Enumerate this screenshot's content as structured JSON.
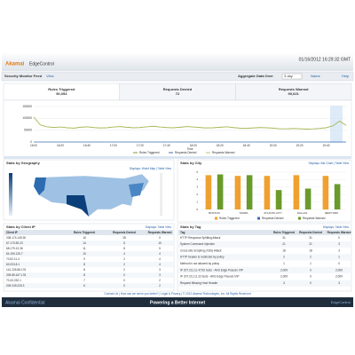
{
  "header": {
    "brand": "Akamai",
    "product": "EdgeControl",
    "datetime": "01/16/2012 16:29:32 GMT"
  },
  "toolbar": {
    "title": "Security Monitor Feed",
    "view": "View",
    "aggregate_label": "Aggregate Data Over",
    "aggregate_value": "3 day",
    "name": "Name",
    "help": "Help"
  },
  "tabs": [
    {
      "label": "Rules Triggered",
      "value": "90,053"
    },
    {
      "label": "Requests Denied",
      "value": "72"
    },
    {
      "label": "Requests Warned",
      "value": "90,621"
    }
  ],
  "trend_chart": {
    "type": "line",
    "x_label": "Time",
    "categories": [
      "16:00",
      null,
      null,
      null,
      "16:20",
      null,
      null,
      null,
      "16:40",
      null,
      null,
      null,
      "17:00",
      null,
      null,
      null,
      "17:20",
      null,
      null,
      null,
      "17:40",
      null,
      null,
      null,
      "18:00",
      null,
      null,
      null,
      "18:20",
      null,
      null,
      null,
      "18:40",
      null,
      null,
      null,
      "19:00",
      null,
      null,
      null,
      "19:20",
      null,
      null,
      null,
      "19:40",
      null,
      null,
      null
    ],
    "series": [
      {
        "name": "Rules Triggered",
        "color": "#8a9a2c",
        "values": [
          105000,
          72000,
          64000,
          61000,
          63000,
          60000,
          58000,
          62000,
          64000,
          61000,
          59000,
          60000,
          63000,
          65000,
          62000,
          60000,
          61000,
          64000,
          66000,
          63000,
          61000,
          60000,
          62000,
          65000,
          63000,
          61000,
          59000,
          60000,
          62000,
          64000,
          61000,
          58000,
          57000,
          59000,
          61000,
          60000,
          58000,
          56000,
          55000,
          57000,
          56000,
          54000,
          55000,
          57000,
          60000,
          68000,
          88000,
          70000
        ]
      },
      {
        "name": "Requests Denied",
        "color": "#3b6fb6",
        "values": [
          0,
          0,
          0,
          0,
          0,
          0,
          0,
          0,
          0,
          0,
          0,
          0,
          0,
          0,
          0,
          0,
          0,
          0,
          0,
          0,
          0,
          0,
          0,
          0,
          0,
          0,
          0,
          0,
          0,
          0,
          0,
          0,
          0,
          0,
          0,
          0,
          0,
          0,
          0,
          0,
          0,
          0,
          0,
          0,
          0,
          0,
          0,
          0
        ]
      },
      {
        "name": "Requests Warned",
        "color": "#b7c46a",
        "values": [
          106000,
          73000,
          65000,
          62000,
          64000,
          61000,
          59000,
          63000,
          65000,
          62000,
          60000,
          61000,
          64000,
          66000,
          63000,
          61000,
          62000,
          65000,
          67000,
          64000,
          62000,
          61000,
          63000,
          66000,
          64000,
          62000,
          60000,
          61000,
          63000,
          65000,
          62000,
          59000,
          58000,
          60000,
          62000,
          61000,
          59000,
          57000,
          56000,
          58000,
          57000,
          55000,
          56000,
          58000,
          61000,
          69000,
          89000,
          71000
        ]
      }
    ],
    "ylim": [
      0,
      150000
    ],
    "yticks": [
      0,
      50000,
      100000,
      150000
    ],
    "grid": true
  },
  "geo_panel": {
    "title": "Stats by Geography",
    "links": "Displays: World Map | Table View"
  },
  "city_panel": {
    "title": "Stats by City",
    "links": "Displays: Bar Chart | Table View",
    "chart": {
      "type": "bar",
      "categories": [
        "BOSTON",
        "TAMPA",
        "ATLANTA CITY",
        "DALLAS",
        "NEWYORK"
      ],
      "series": [
        {
          "name": "Rules Triggered",
          "color": "#f0a030",
          "values": [
            4.6,
            4.5,
            4.5,
            4.6,
            4.5
          ]
        },
        {
          "name": "Requests Denied",
          "color": "#3b6fb6",
          "values": [
            0,
            0,
            0,
            0,
            0
          ]
        },
        {
          "name": "Requests Warned",
          "color": "#6a9a2a",
          "values": [
            4.7,
            4.6,
            2.6,
            2.8,
            3.4
          ]
        }
      ],
      "ylim": [
        0,
        5
      ],
      "yticks": [
        0,
        1,
        2,
        3,
        4,
        5
      ]
    }
  },
  "ip_table": {
    "title": "Stats by Client IP",
    "links": "Displays: Table View",
    "columns": [
      "Client IP",
      "Rules Triggered",
      "Requests Denied",
      "Requests Warned"
    ],
    "rows": [
      [
        "208.174.145.30",
        "16",
        "28",
        "0"
      ],
      [
        "67.170.59.23",
        "14",
        "5",
        "10"
      ],
      [
        "68.179.13.36",
        "11",
        "8",
        "5"
      ],
      [
        "64.190.125.7",
        "10",
        "4",
        "4"
      ],
      [
        "70.52.11.4",
        "9",
        "2",
        "4"
      ],
      [
        "63.203.8.1",
        "8",
        "2",
        "4"
      ],
      [
        "141.226.58.176",
        "8",
        "2",
        "3"
      ],
      [
        "209.85.167.178",
        "8",
        "0",
        "3"
      ],
      [
        "70.43.232.1",
        "7",
        "0",
        "2"
      ],
      [
        "209.249.225.3",
        "6",
        "0",
        "2"
      ]
    ]
  },
  "tag_table": {
    "title": "Stats by Tag",
    "links": "Displays: Table View",
    "columns": [
      "Tag",
      "Rules Triggered",
      "Requests Denied",
      "Requests Warned"
    ],
    "rows": [
      [
        "HTTP Response Splitting Attack",
        "31",
        "31",
        "0"
      ],
      [
        "System Command Injection",
        "21",
        "21",
        "3"
      ],
      [
        "Cross-site Scripting (XSS) Attack",
        "18",
        "18",
        "3"
      ],
      [
        "HTTP header is restricted by policy",
        "2",
        "2",
        "1"
      ],
      [
        "Method is not allowed by policy",
        "1",
        "1",
        "0"
      ],
      [
        "IP 207.211.11.47/22 tests - AKS Edge Pseudo VIP",
        "2,009",
        "0",
        "2,009"
      ],
      [
        "IP 207.211.11.22 tests - AKS Edge Pseudo VIP",
        "2,009",
        "0",
        "2,009"
      ],
      [
        "Request Missing Host Header",
        "3",
        "0",
        "3"
      ]
    ]
  },
  "footer": {
    "links": "Contact Us | How can we serve you better? | Legal & Privacy | © 2012 Akamai Technologies, Inc. All Rights Reserved",
    "left": "Akamai Confidential",
    "center": "Powering a Better Internet",
    "right": "EdgeControl"
  }
}
